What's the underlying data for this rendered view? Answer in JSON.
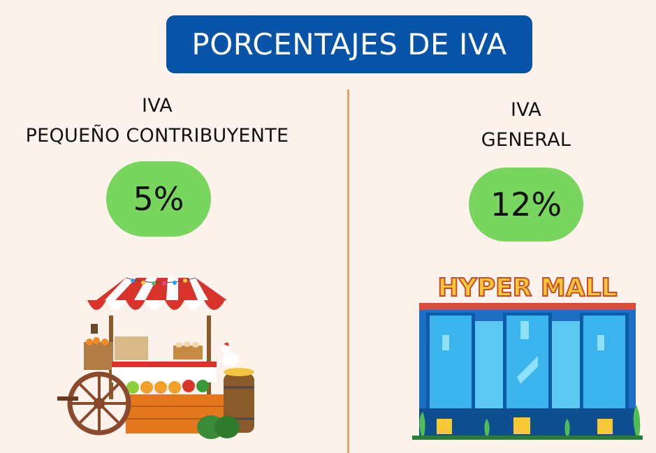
{
  "title": "PORCENTAJES DE IVA",
  "left": {
    "label_line1": "IVA",
    "label_line2": "PEQUEÑO CONTRIBUYENTE",
    "percentage": "5%",
    "illustration": "market-stall-icon"
  },
  "right": {
    "label_line1": "IVA",
    "label_line2": "GENERAL",
    "percentage": "12%",
    "illustration": "mall-building-icon",
    "sign_text": "HYPER MALL"
  },
  "colors": {
    "background": "#fdf3ec",
    "banner": "#0653a8",
    "pill": "#78d55d",
    "divider": "#f0a060"
  }
}
